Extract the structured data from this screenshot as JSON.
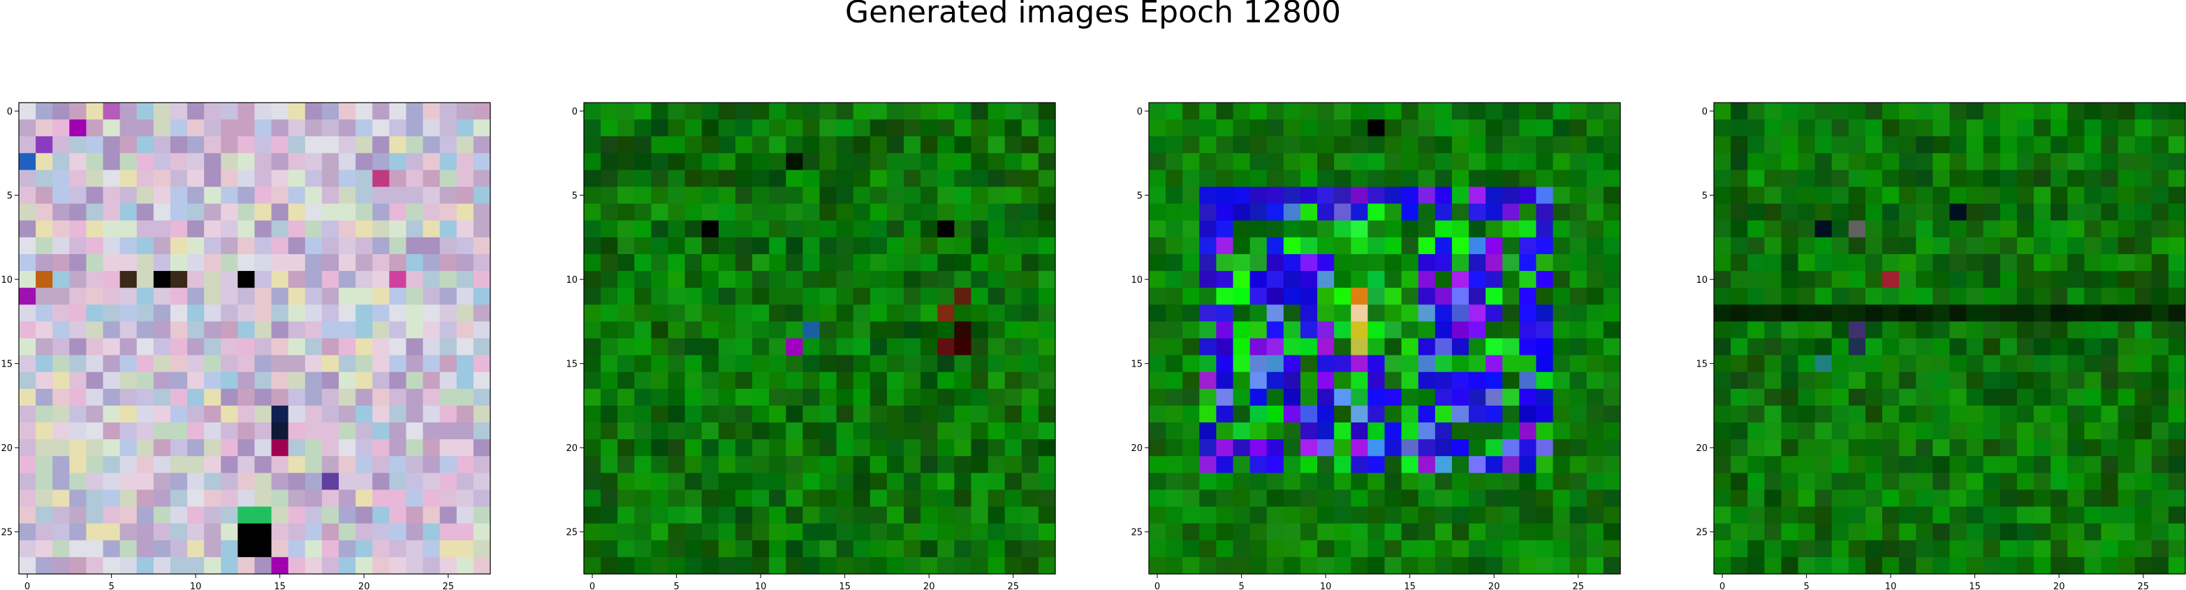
{
  "figure": {
    "title": "Generated images Epoch 12800"
  },
  "chart_data": [
    {
      "type": "heatmap",
      "title": "",
      "xlabel": "",
      "ylabel": "",
      "xlim": [
        -0.5,
        27.5
      ],
      "ylim": [
        27.5,
        -0.5
      ],
      "grid": false,
      "xticks": [
        "0",
        "5",
        "10",
        "15",
        "20",
        "25"
      ],
      "yticks": [
        "0",
        "5",
        "10",
        "15",
        "20",
        "25"
      ],
      "description_palette": "pastel",
      "base_color": "#d6c8d8",
      "highlights": [
        {
          "row": 0,
          "col": 5,
          "color": "#b45cb8"
        },
        {
          "row": 1,
          "col": 3,
          "color": "#a000b0"
        },
        {
          "row": 2,
          "col": 1,
          "color": "#8a3cc0"
        },
        {
          "row": 3,
          "col": 0,
          "color": "#2060c0"
        },
        {
          "row": 4,
          "col": 21,
          "color": "#c03a80"
        },
        {
          "row": 10,
          "col": 1,
          "color": "#c06010"
        },
        {
          "row": 10,
          "col": 6,
          "color": "#3a2818"
        },
        {
          "row": 10,
          "col": 8,
          "color": "#000000"
        },
        {
          "row": 10,
          "col": 9,
          "color": "#3a2818"
        },
        {
          "row": 10,
          "col": 13,
          "color": "#000000"
        },
        {
          "row": 10,
          "col": 22,
          "color": "#d040a0"
        },
        {
          "row": 11,
          "col": 0,
          "color": "#a010b0"
        },
        {
          "row": 18,
          "col": 15,
          "color": "#102050"
        },
        {
          "row": 19,
          "col": 15,
          "color": "#101838"
        },
        {
          "row": 20,
          "col": 15,
          "color": "#a00050"
        },
        {
          "row": 22,
          "col": 18,
          "color": "#6040a0"
        },
        {
          "row": 24,
          "col": 13,
          "color": "#20c060"
        },
        {
          "row": 24,
          "col": 14,
          "color": "#20c060"
        },
        {
          "row": 25,
          "col": 13,
          "color": "#000000"
        },
        {
          "row": 25,
          "col": 14,
          "color": "#000000"
        },
        {
          "row": 26,
          "col": 13,
          "color": "#000000"
        },
        {
          "row": 26,
          "col": 14,
          "color": "#000000"
        },
        {
          "row": 27,
          "col": 15,
          "color": "#a000b0"
        }
      ]
    },
    {
      "type": "heatmap",
      "title": "",
      "xlabel": "",
      "ylabel": "",
      "xlim": [
        -0.5,
        27.5
      ],
      "ylim": [
        27.5,
        -0.5
      ],
      "grid": false,
      "xticks": [
        "0",
        "5",
        "10",
        "15",
        "20",
        "25"
      ],
      "yticks": [
        "0",
        "5",
        "10",
        "15",
        "20",
        "25"
      ],
      "description_palette": "green",
      "base_color": "#0a7a0a",
      "highlights": [
        {
          "row": 3,
          "col": 12,
          "color": "#001400"
        },
        {
          "row": 7,
          "col": 7,
          "color": "#000000"
        },
        {
          "row": 7,
          "col": 21,
          "color": "#000000"
        },
        {
          "row": 11,
          "col": 22,
          "color": "#602010"
        },
        {
          "row": 12,
          "col": 21,
          "color": "#802a10"
        },
        {
          "row": 13,
          "col": 22,
          "color": "#2a0800"
        },
        {
          "row": 13,
          "col": 13,
          "color": "#1a60a0"
        },
        {
          "row": 14,
          "col": 12,
          "color": "#a000c0"
        },
        {
          "row": 14,
          "col": 21,
          "color": "#601010"
        },
        {
          "row": 14,
          "col": 22,
          "color": "#3a0000"
        }
      ]
    },
    {
      "type": "heatmap",
      "title": "",
      "xlabel": "",
      "ylabel": "",
      "xlim": [
        -0.5,
        27.5
      ],
      "ylim": [
        27.5,
        -0.5
      ],
      "grid": false,
      "xticks": [
        "0",
        "5",
        "10",
        "15",
        "20",
        "25"
      ],
      "yticks": [
        "0",
        "5",
        "10",
        "15",
        "20",
        "25"
      ],
      "description_palette": "green-blue",
      "base_color": "#0a7a0a",
      "blue_region": {
        "rows": [
          5,
          21
        ],
        "cols": [
          3,
          23
        ],
        "color": "#1010e0"
      },
      "highlights": [
        {
          "row": 1,
          "col": 13,
          "color": "#000000"
        },
        {
          "row": 11,
          "col": 12,
          "color": "#e08010"
        },
        {
          "row": 12,
          "col": 12,
          "color": "#f0d0a0"
        },
        {
          "row": 13,
          "col": 12,
          "color": "#d0c020"
        },
        {
          "row": 14,
          "col": 12,
          "color": "#c0c040"
        }
      ]
    },
    {
      "type": "heatmap",
      "title": "",
      "xlabel": "",
      "ylabel": "",
      "xlim": [
        -0.5,
        27.5
      ],
      "ylim": [
        27.5,
        -0.5
      ],
      "grid": false,
      "xticks": [
        "0",
        "5",
        "10",
        "15",
        "20",
        "25"
      ],
      "yticks": [
        "0",
        "5",
        "10",
        "15",
        "20",
        "25"
      ],
      "description_palette": "green-dark",
      "base_color": "#0a6e0a",
      "dark_band": {
        "row": 12,
        "cols": [
          0,
          27
        ],
        "color": "#082808"
      },
      "highlights": [
        {
          "row": 7,
          "col": 6,
          "color": "#001020"
        },
        {
          "row": 7,
          "col": 8,
          "color": "#606060"
        },
        {
          "row": 10,
          "col": 10,
          "color": "#a02030"
        },
        {
          "row": 13,
          "col": 8,
          "color": "#403070"
        },
        {
          "row": 14,
          "col": 8,
          "color": "#203050"
        },
        {
          "row": 15,
          "col": 6,
          "color": "#208080"
        },
        {
          "row": 6,
          "col": 14,
          "color": "#001020"
        }
      ]
    }
  ]
}
